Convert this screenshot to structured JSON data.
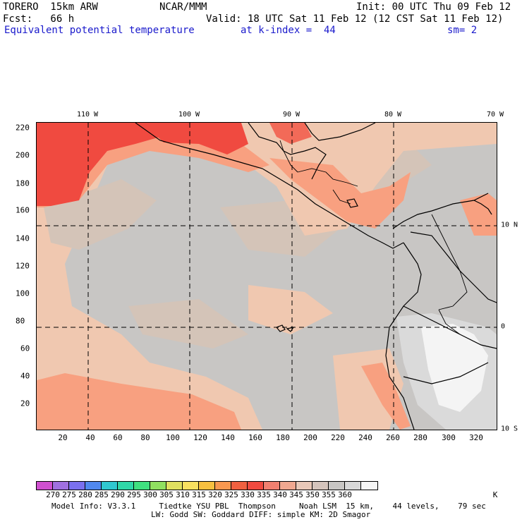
{
  "header": {
    "model": "TORERO  15km ARW",
    "org": "NCAR/MMM",
    "init": "Init: 00 UTC Thu 09 Feb 12",
    "fcst": "Fcst:   66 h",
    "valid": "Valid: 18 UTC Sat 11 Feb 12 (12 CST Sat 11 Feb 12)",
    "field": "Equivalent potential temperature",
    "level": "at k-index =  44",
    "smooth": "sm= 2"
  },
  "map": {
    "lon_labels": [
      "110 W",
      "100 W",
      "90 W",
      "80 W",
      "70 W"
    ],
    "lat_labels": [
      "10 N",
      "0",
      "10 S"
    ],
    "y_grid_labels": [
      "220",
      "200",
      "180",
      "160",
      "140",
      "120",
      "100",
      "80",
      "60",
      "40",
      "20"
    ],
    "x_grid_labels": [
      "20",
      "40",
      "60",
      "80",
      "100",
      "120",
      "140",
      "160",
      "180",
      "200",
      "220",
      "240",
      "260",
      "280",
      "300",
      "320"
    ],
    "field_colors": {
      "red": "#f04a40",
      "salmon": "#f8a080",
      "peach": "#f0c8b0",
      "tan": "#d4c4b8",
      "gray": "#c8c6c4",
      "lightgray": "#dadada",
      "white": "#f4f4f4"
    }
  },
  "colorbar": {
    "colors": [
      "#d050d0",
      "#a070e0",
      "#7a70ee",
      "#5088ee",
      "#30c8d0",
      "#30d8a8",
      "#40e080",
      "#90e060",
      "#e0e060",
      "#f8e060",
      "#f8c040",
      "#f89850",
      "#f06040",
      "#f04a40",
      "#f08070",
      "#f0a890",
      "#e8c8b8",
      "#d4c4bc",
      "#c8c6c4",
      "#d8d8d8",
      "#f6f6f6"
    ],
    "labels": [
      "270",
      "275",
      "280",
      "285",
      "290",
      "295",
      "300",
      "305",
      "310",
      "315",
      "320",
      "325",
      "330",
      "335",
      "340",
      "345",
      "350",
      "355",
      "360"
    ],
    "unit": "K"
  },
  "footer": {
    "line1": "Model Info: V3.3.1     Tiedtke YSU PBL  Thompson     Noah LSM  15 km,    44 levels,    79 sec",
    "line2": "LW: Godd SW: Goddard DIFF: simple KM: 2D Smagor"
  }
}
